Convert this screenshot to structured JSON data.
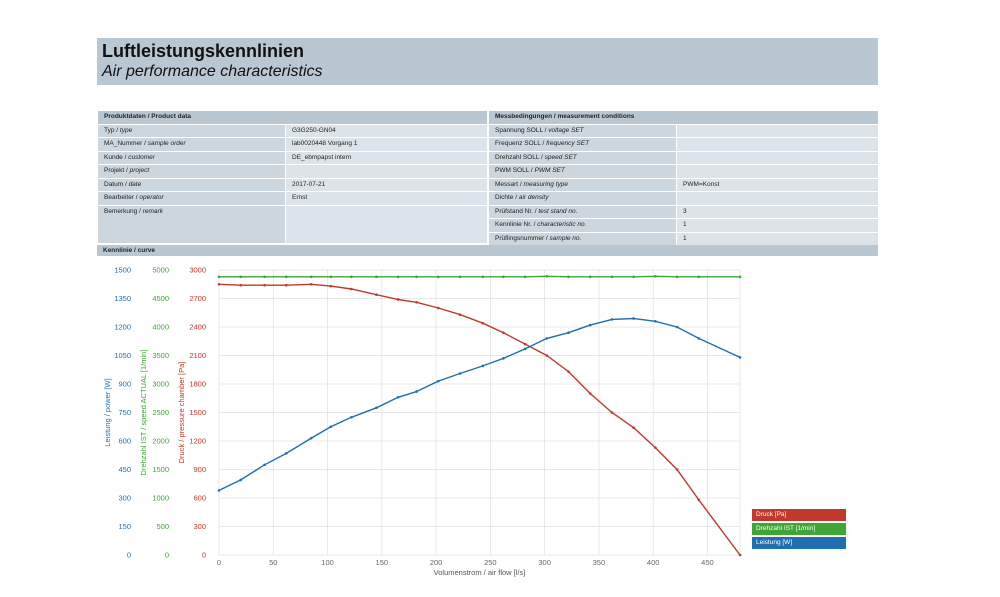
{
  "header": {
    "title_de": "Luftleistungskennlinien",
    "title_en": "Air performance characteristics"
  },
  "product": {
    "header": "Produktdaten / Product data",
    "rows": [
      {
        "de": "Typ / ",
        "en": "type",
        "value": "G3G250-GN04"
      },
      {
        "de": "MA_Nummer / ",
        "en": "sample order",
        "value": "lab0020448 Vorgang 1"
      },
      {
        "de": "Kunde / ",
        "en": "customer",
        "value": "DE_ebmpapst intern"
      },
      {
        "de": "Projekt / ",
        "en": "project",
        "value": ""
      },
      {
        "de": "Datum / ",
        "en": "date",
        "value": "2017-07-21"
      },
      {
        "de": "Bearbeiter / ",
        "en": "operator",
        "value": "Ernst"
      },
      {
        "de": "Bemerkung / ",
        "en": "remark",
        "value": ""
      }
    ]
  },
  "measurement": {
    "header": "Messbedingungen / measurement conditions",
    "rows": [
      {
        "de": "Spannung SOLL / ",
        "en": "voltage SET",
        "value": ""
      },
      {
        "de": "Frequenz SOLL / ",
        "en": "frequency SET",
        "value": ""
      },
      {
        "de": "Drehzahl SOLL / ",
        "en": "speed SET",
        "value": ""
      },
      {
        "de": "PWM SOLL / ",
        "en": "PWM SET",
        "value": ""
      },
      {
        "de": "Messart / ",
        "en": "measuring type",
        "value": "PWM=Konst"
      },
      {
        "de": "Dichte / ",
        "en": "air density",
        "value": ""
      },
      {
        "de": "Prüfstand Nr. / ",
        "en": "test stand no.",
        "value": "3"
      },
      {
        "de": "Kennlinie Nr. / ",
        "en": "characteristic no.",
        "value": "1"
      },
      {
        "de": "Prüflingsnummer / ",
        "en": "sample no.",
        "value": "1"
      }
    ]
  },
  "curve_header": "Kennlinie / curve",
  "colors": {
    "power": "#1f6fb0",
    "speed": "#3fa535",
    "pressure": "#c0392b",
    "grid": "#e2e2e2"
  },
  "chart_data": {
    "type": "line",
    "xlabel": "Volumenstrom / air flow [l/s]",
    "xlim": [
      0,
      480
    ],
    "x_ticks": [
      0,
      50,
      100,
      150,
      200,
      250,
      300,
      350,
      400,
      450
    ],
    "grid": true,
    "legend_position": "bottom-right",
    "axes": [
      {
        "id": "power",
        "label": "Leistung / power [W]",
        "ylim": [
          0,
          1500
        ],
        "ticks": [
          0,
          150,
          300,
          450,
          600,
          750,
          900,
          1050,
          1200,
          1350,
          1500
        ]
      },
      {
        "id": "speed",
        "label": "Drehzahl IST / speed ACTUAL [1/min]",
        "ylim": [
          0,
          5000
        ],
        "ticks": [
          0,
          500,
          1000,
          1500,
          2000,
          2500,
          3000,
          3500,
          4000,
          4500,
          5000
        ]
      },
      {
        "id": "pressure",
        "label": "Druck / pressure chamber [Pa]",
        "ylim": [
          0,
          3000
        ],
        "ticks": [
          0,
          300,
          600,
          900,
          1200,
          1500,
          1800,
          2100,
          2400,
          2700,
          3000
        ]
      }
    ],
    "series": [
      {
        "name": "Druck [Pa]",
        "axis": "pressure",
        "x": [
          0,
          20,
          42,
          62,
          85,
          103,
          122,
          145,
          165,
          182,
          202,
          222,
          243,
          262,
          282,
          302,
          322,
          342,
          362,
          382,
          402,
          422,
          442,
          480
        ],
        "y": [
          2850,
          2840,
          2840,
          2840,
          2850,
          2830,
          2800,
          2740,
          2690,
          2660,
          2600,
          2530,
          2440,
          2340,
          2220,
          2100,
          1930,
          1700,
          1500,
          1340,
          1130,
          900,
          580,
          0
        ]
      },
      {
        "name": "Drehzahl IST [1/min]",
        "axis": "speed",
        "x": [
          0,
          20,
          42,
          62,
          85,
          103,
          122,
          145,
          165,
          182,
          202,
          222,
          243,
          262,
          282,
          302,
          322,
          342,
          362,
          382,
          402,
          422,
          442,
          480
        ],
        "y": [
          4880,
          4880,
          4880,
          4880,
          4880,
          4880,
          4880,
          4880,
          4880,
          4880,
          4880,
          4880,
          4880,
          4880,
          4880,
          4890,
          4880,
          4880,
          4880,
          4880,
          4890,
          4880,
          4880,
          4880
        ]
      },
      {
        "name": "Leistung [W]",
        "axis": "power",
        "x": [
          0,
          20,
          42,
          62,
          85,
          103,
          122,
          145,
          165,
          182,
          202,
          222,
          243,
          262,
          282,
          302,
          322,
          342,
          362,
          382,
          402,
          422,
          442,
          480
        ],
        "y": [
          340,
          395,
          475,
          535,
          615,
          675,
          725,
          775,
          830,
          860,
          915,
          955,
          995,
          1035,
          1085,
          1140,
          1170,
          1210,
          1240,
          1245,
          1230,
          1200,
          1140,
          1040
        ]
      }
    ]
  }
}
